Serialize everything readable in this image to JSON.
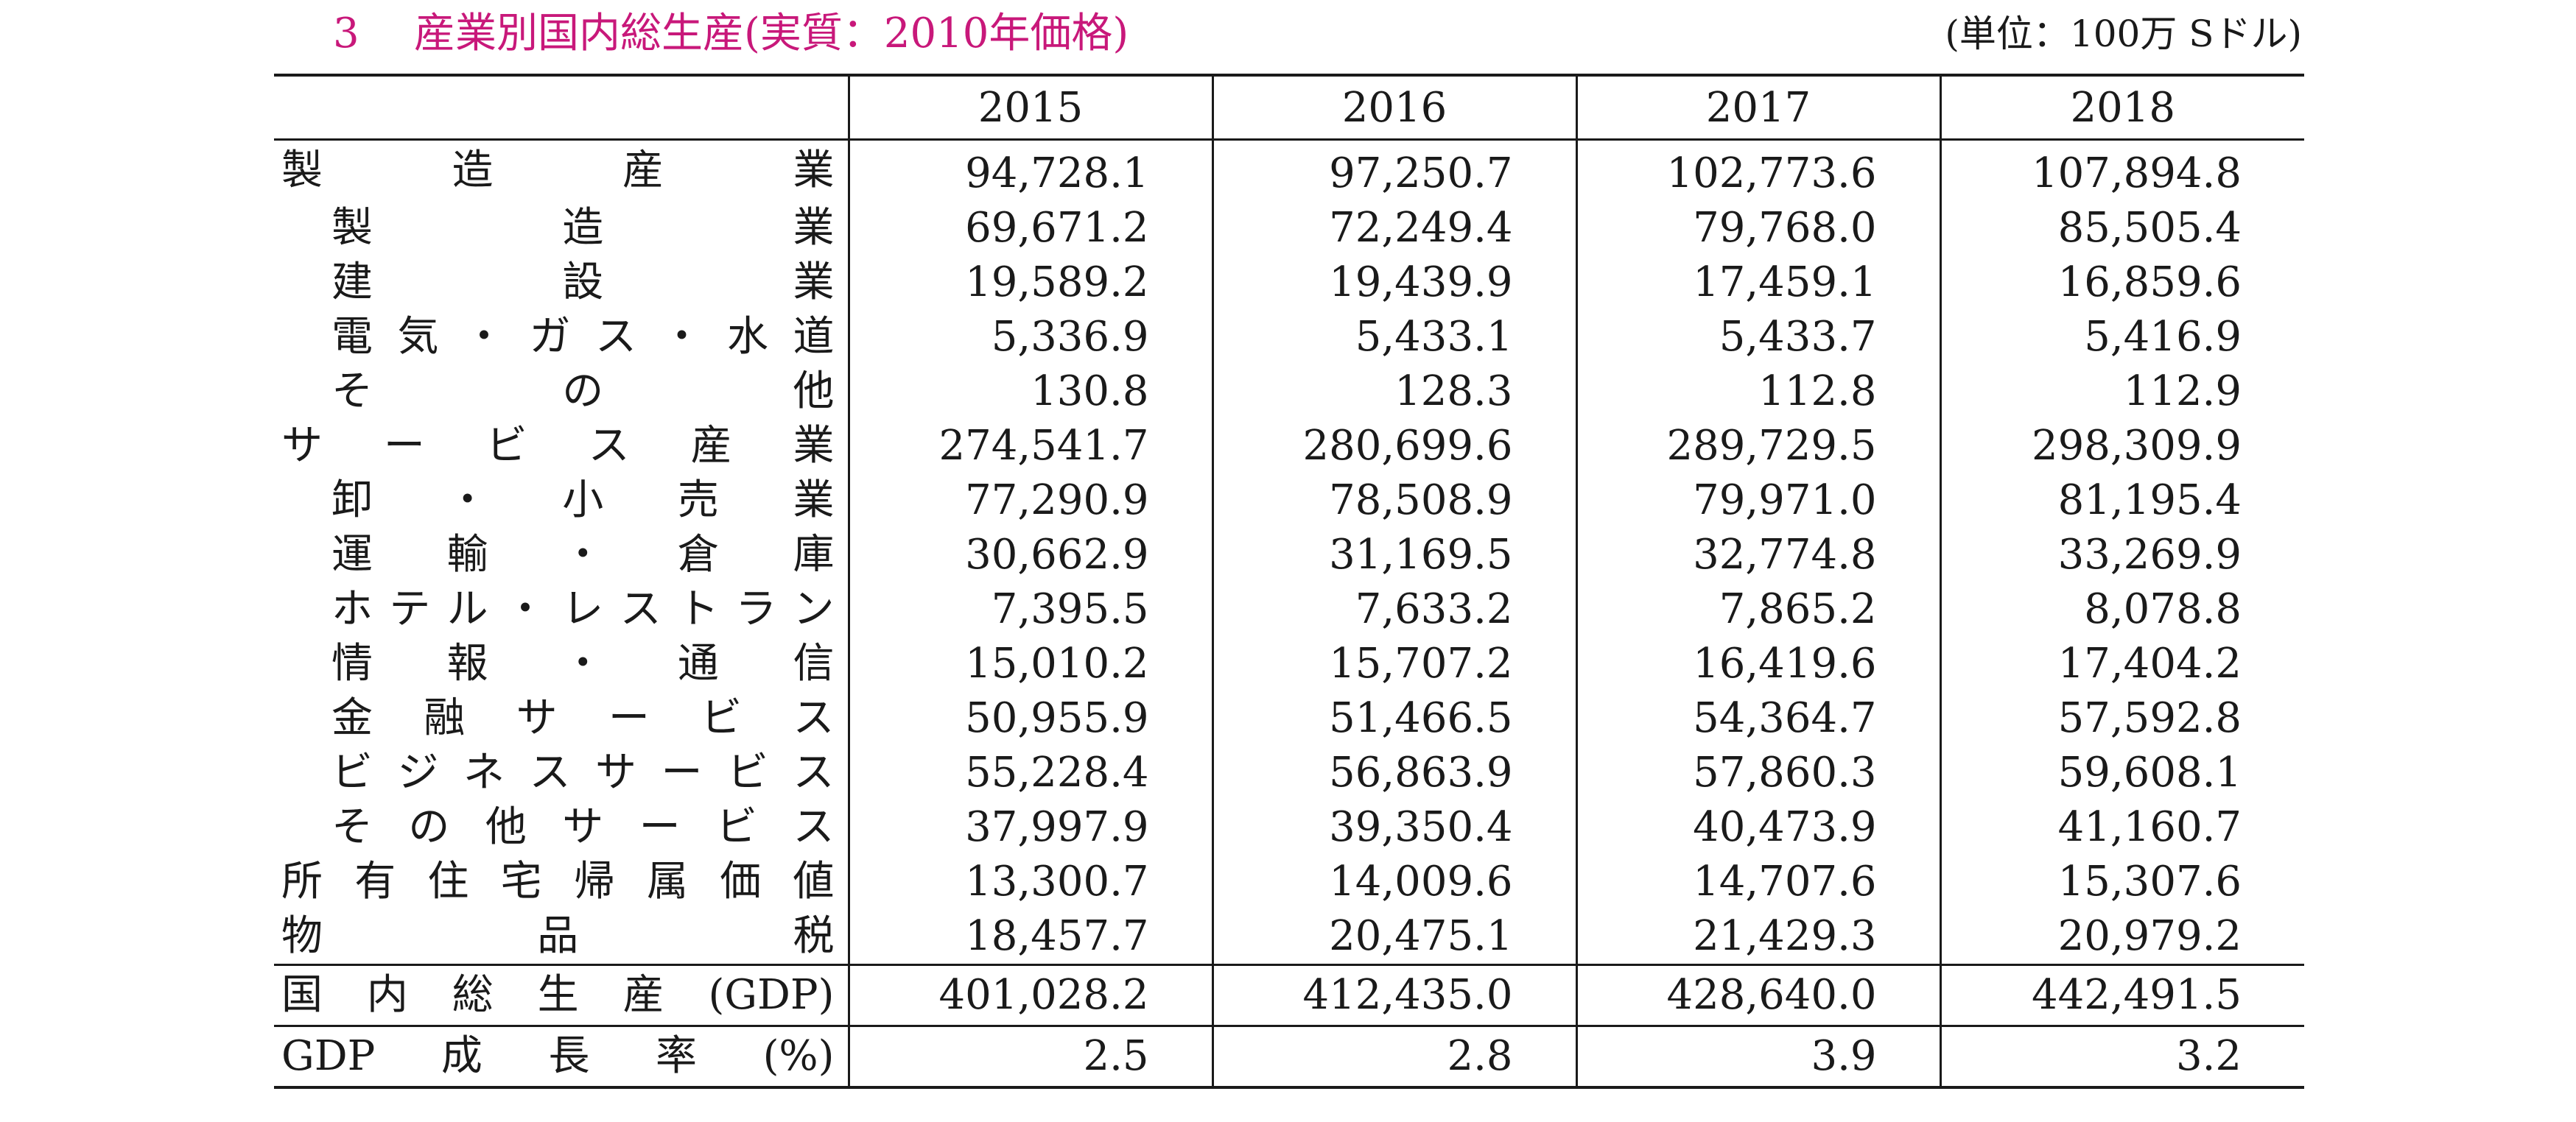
{
  "title": {
    "number": "3",
    "text": "産業別国内総生産(実質：2010年価格)"
  },
  "unit": "(単位：100万 Sドル)",
  "table": {
    "years": [
      "2015",
      "2016",
      "2017",
      "2018"
    ],
    "rows": [
      {
        "label": "製造産業",
        "level": 0,
        "values": [
          "94,728.1",
          "97,250.7",
          "102,773.6",
          "107,894.8"
        ]
      },
      {
        "label": "製造業",
        "level": 1,
        "values": [
          "69,671.2",
          "72,249.4",
          "79,768.0",
          "85,505.4"
        ]
      },
      {
        "label": "建設業",
        "level": 1,
        "values": [
          "19,589.2",
          "19,439.9",
          "17,459.1",
          "16,859.6"
        ]
      },
      {
        "label": "電気・ガス・水道",
        "level": 1,
        "values": [
          "5,336.9",
          "5,433.1",
          "5,433.7",
          "5,416.9"
        ]
      },
      {
        "label": "その他",
        "level": 1,
        "values": [
          "130.8",
          "128.3",
          "112.8",
          "112.9"
        ]
      },
      {
        "label": "サービス産業",
        "level": 0,
        "values": [
          "274,541.7",
          "280,699.6",
          "289,729.5",
          "298,309.9"
        ]
      },
      {
        "label": "卸・小売業",
        "level": 1,
        "values": [
          "77,290.9",
          "78,508.9",
          "79,971.0",
          "81,195.4"
        ]
      },
      {
        "label": "運輸・倉庫",
        "level": 1,
        "values": [
          "30,662.9",
          "31,169.5",
          "32,774.8",
          "33,269.9"
        ]
      },
      {
        "label": "ホテル・レストラン",
        "level": 1,
        "values": [
          "7,395.5",
          "7,633.2",
          "7,865.2",
          "8,078.8"
        ]
      },
      {
        "label": "情報・通信",
        "level": 1,
        "values": [
          "15,010.2",
          "15,707.2",
          "16,419.6",
          "17,404.2"
        ]
      },
      {
        "label": "金融サービス",
        "level": 1,
        "values": [
          "50,955.9",
          "51,466.5",
          "54,364.7",
          "57,592.8"
        ]
      },
      {
        "label": "ビジネスサービス",
        "level": 1,
        "values": [
          "55,228.4",
          "56,863.9",
          "57,860.3",
          "59,608.1"
        ]
      },
      {
        "label": "その他サービス",
        "level": 1,
        "values": [
          "37,997.9",
          "39,350.4",
          "40,473.9",
          "41,160.7"
        ]
      },
      {
        "label": "所有住宅帰属価値",
        "level": 0,
        "values": [
          "13,300.7",
          "14,009.6",
          "14,707.6",
          "15,307.6"
        ]
      },
      {
        "label": "物品税",
        "level": 0,
        "values": [
          "18,457.7",
          "20,475.1",
          "21,429.3",
          "20,979.2"
        ]
      }
    ],
    "gdp": {
      "label": "国内総生産(GDP)",
      "values": [
        "401,028.2",
        "412,435.0",
        "428,640.0",
        "442,491.5"
      ]
    },
    "growth": {
      "label": "GDP成長率(%)",
      "values": [
        "2.5",
        "2.8",
        "3.9",
        "3.2"
      ]
    }
  }
}
